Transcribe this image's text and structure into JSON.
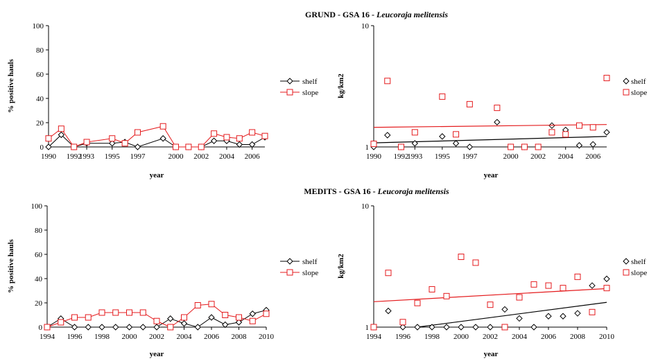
{
  "figure": {
    "panels": [
      {
        "title": {
          "prefix": "GRUND - GSA 16 - ",
          "species": "Leucoraja melitensis"
        },
        "left": {
          "ylabel": "% positive hauls",
          "xlabel": "year"
        },
        "right": {
          "ylabel": "kg/km2",
          "xlabel": "year"
        }
      },
      {
        "title": {
          "prefix": "MEDITS - GSA 16 - ",
          "species": "Leucoraja melitensis"
        },
        "left": {
          "ylabel": "% positive hauls",
          "xlabel": "year"
        },
        "right": {
          "ylabel": "kg/km2",
          "xlabel": "year"
        }
      }
    ],
    "legend": {
      "shelf": "shelf",
      "slope": "slope"
    },
    "colors": {
      "shelf": "#000000",
      "slope": "#e41a1c",
      "axis": "#000000"
    }
  },
  "chart_data": [
    {
      "id": "grund-pct",
      "type": "line",
      "chart": "GRUND - GSA 16 - Leucoraja melitensis",
      "xlabel": "year",
      "ylabel": "% positive hauls",
      "xlim": [
        1990,
        2007
      ],
      "ylim": [
        0,
        100
      ],
      "xticks": [
        1990,
        1992,
        1993,
        1995,
        1997,
        2000,
        2002,
        2004,
        2006
      ],
      "yticks": [
        0,
        20,
        40,
        60,
        80,
        100
      ],
      "series": [
        {
          "name": "shelf",
          "marker": "diamond",
          "x": [
            1990,
            1991,
            1992,
            1993,
            1995,
            1996,
            1997,
            1999,
            2000,
            2001,
            2002,
            2003,
            2004,
            2005,
            2006,
            2007
          ],
          "y": [
            0,
            10,
            0,
            3,
            3,
            4,
            0,
            7,
            0,
            0,
            0,
            5,
            5,
            2,
            2,
            8
          ]
        },
        {
          "name": "slope",
          "marker": "square",
          "x": [
            1990,
            1991,
            1992,
            1993,
            1995,
            1996,
            1997,
            1999,
            2000,
            2001,
            2002,
            2003,
            2004,
            2005,
            2006,
            2007
          ],
          "y": [
            7,
            15,
            0,
            4,
            7,
            3,
            12,
            17,
            0,
            0,
            0,
            11,
            8,
            7,
            12,
            9
          ]
        }
      ]
    },
    {
      "id": "grund-biomass",
      "type": "scatter",
      "scale": "log",
      "xlabel": "year",
      "ylabel": "kg/km2",
      "xlim": [
        1990,
        2007
      ],
      "ylim": [
        1,
        10
      ],
      "xticks": [
        1990,
        1992,
        1993,
        1995,
        1997,
        2000,
        2002,
        2004,
        2006
      ],
      "yticks": [
        1,
        10
      ],
      "series": [
        {
          "name": "shelf",
          "marker": "diamond",
          "x": [
            1990,
            1991,
            1992,
            1993,
            1995,
            1996,
            1997,
            1999,
            2000,
            2001,
            2002,
            2003,
            2004,
            2005,
            2006,
            2007
          ],
          "y": [
            1.0,
            1.25,
            1.0,
            1.07,
            1.22,
            1.07,
            1.0,
            1.6,
            1.0,
            1.0,
            1.0,
            1.5,
            1.38,
            1.03,
            1.05,
            1.32
          ],
          "trend": [
            1.08,
            1.22
          ]
        },
        {
          "name": "slope",
          "marker": "square",
          "x": [
            1990,
            1991,
            1992,
            1993,
            1995,
            1996,
            1997,
            1999,
            2000,
            2001,
            2002,
            2003,
            2004,
            2005,
            2006,
            2007
          ],
          "y": [
            1.06,
            3.5,
            1.0,
            1.32,
            2.6,
            1.27,
            2.25,
            2.1,
            1.0,
            1.0,
            1.0,
            1.32,
            1.27,
            1.5,
            1.45,
            3.7
          ],
          "trend": [
            1.45,
            1.53
          ]
        }
      ]
    },
    {
      "id": "medits-pct",
      "type": "line",
      "chart": "MEDITS - GSA 16 - Leucoraja melitensis",
      "xlabel": "year",
      "ylabel": "% positive hauls",
      "xlim": [
        1994,
        2010
      ],
      "ylim": [
        0,
        100
      ],
      "xticks": [
        1994,
        1996,
        1998,
        2000,
        2002,
        2004,
        2006,
        2008,
        2010
      ],
      "yticks": [
        0,
        20,
        40,
        60,
        80,
        100
      ],
      "series": [
        {
          "name": "shelf",
          "marker": "diamond",
          "x": [
            1994,
            1995,
            1996,
            1997,
            1998,
            1999,
            2000,
            2001,
            2002,
            2003,
            2004,
            2005,
            2006,
            2007,
            2008,
            2009,
            2010
          ],
          "y": [
            0,
            7,
            0,
            0,
            0,
            0,
            0,
            0,
            0,
            7,
            3,
            0,
            8,
            2,
            4,
            11,
            14
          ]
        },
        {
          "name": "slope",
          "marker": "square",
          "x": [
            1994,
            1995,
            1996,
            1997,
            1998,
            1999,
            2000,
            2001,
            2002,
            2003,
            2004,
            2005,
            2006,
            2007,
            2008,
            2009,
            2010
          ],
          "y": [
            0,
            4,
            8,
            8,
            12,
            12,
            12,
            12,
            5,
            0,
            8,
            18,
            19,
            10,
            8,
            5,
            11
          ]
        }
      ]
    },
    {
      "id": "medits-biomass",
      "type": "scatter",
      "scale": "log",
      "xlabel": "year",
      "ylabel": "kg/km2",
      "xlim": [
        1994,
        2010
      ],
      "ylim": [
        1,
        10
      ],
      "xticks": [
        1994,
        1996,
        1998,
        2000,
        2002,
        2004,
        2006,
        2008,
        2010
      ],
      "yticks": [
        1,
        10
      ],
      "series": [
        {
          "name": "shelf",
          "marker": "diamond",
          "x": [
            1994,
            1995,
            1996,
            1997,
            1998,
            1999,
            2000,
            2001,
            2002,
            2003,
            2004,
            2005,
            2006,
            2007,
            2008,
            2009,
            2010
          ],
          "y": [
            1.0,
            1.36,
            1.0,
            1.0,
            1.0,
            1.0,
            1.0,
            1.0,
            1.0,
            1.4,
            1.18,
            1.0,
            1.23,
            1.23,
            1.3,
            2.2,
            2.5
          ],
          "trendX": [
            1997,
            2010
          ],
          "trend": [
            1.0,
            1.6
          ]
        },
        {
          "name": "slope",
          "marker": "square",
          "x": [
            1994,
            1995,
            1996,
            1997,
            1998,
            1999,
            2000,
            2001,
            2002,
            2003,
            2004,
            2005,
            2006,
            2007,
            2008,
            2009,
            2010
          ],
          "y": [
            1.0,
            2.8,
            1.1,
            1.58,
            2.05,
            1.8,
            3.8,
            3.4,
            1.53,
            1.0,
            1.76,
            2.25,
            2.2,
            2.1,
            2.6,
            1.33,
            2.1
          ],
          "trend": [
            1.62,
            2.08
          ]
        }
      ]
    }
  ]
}
